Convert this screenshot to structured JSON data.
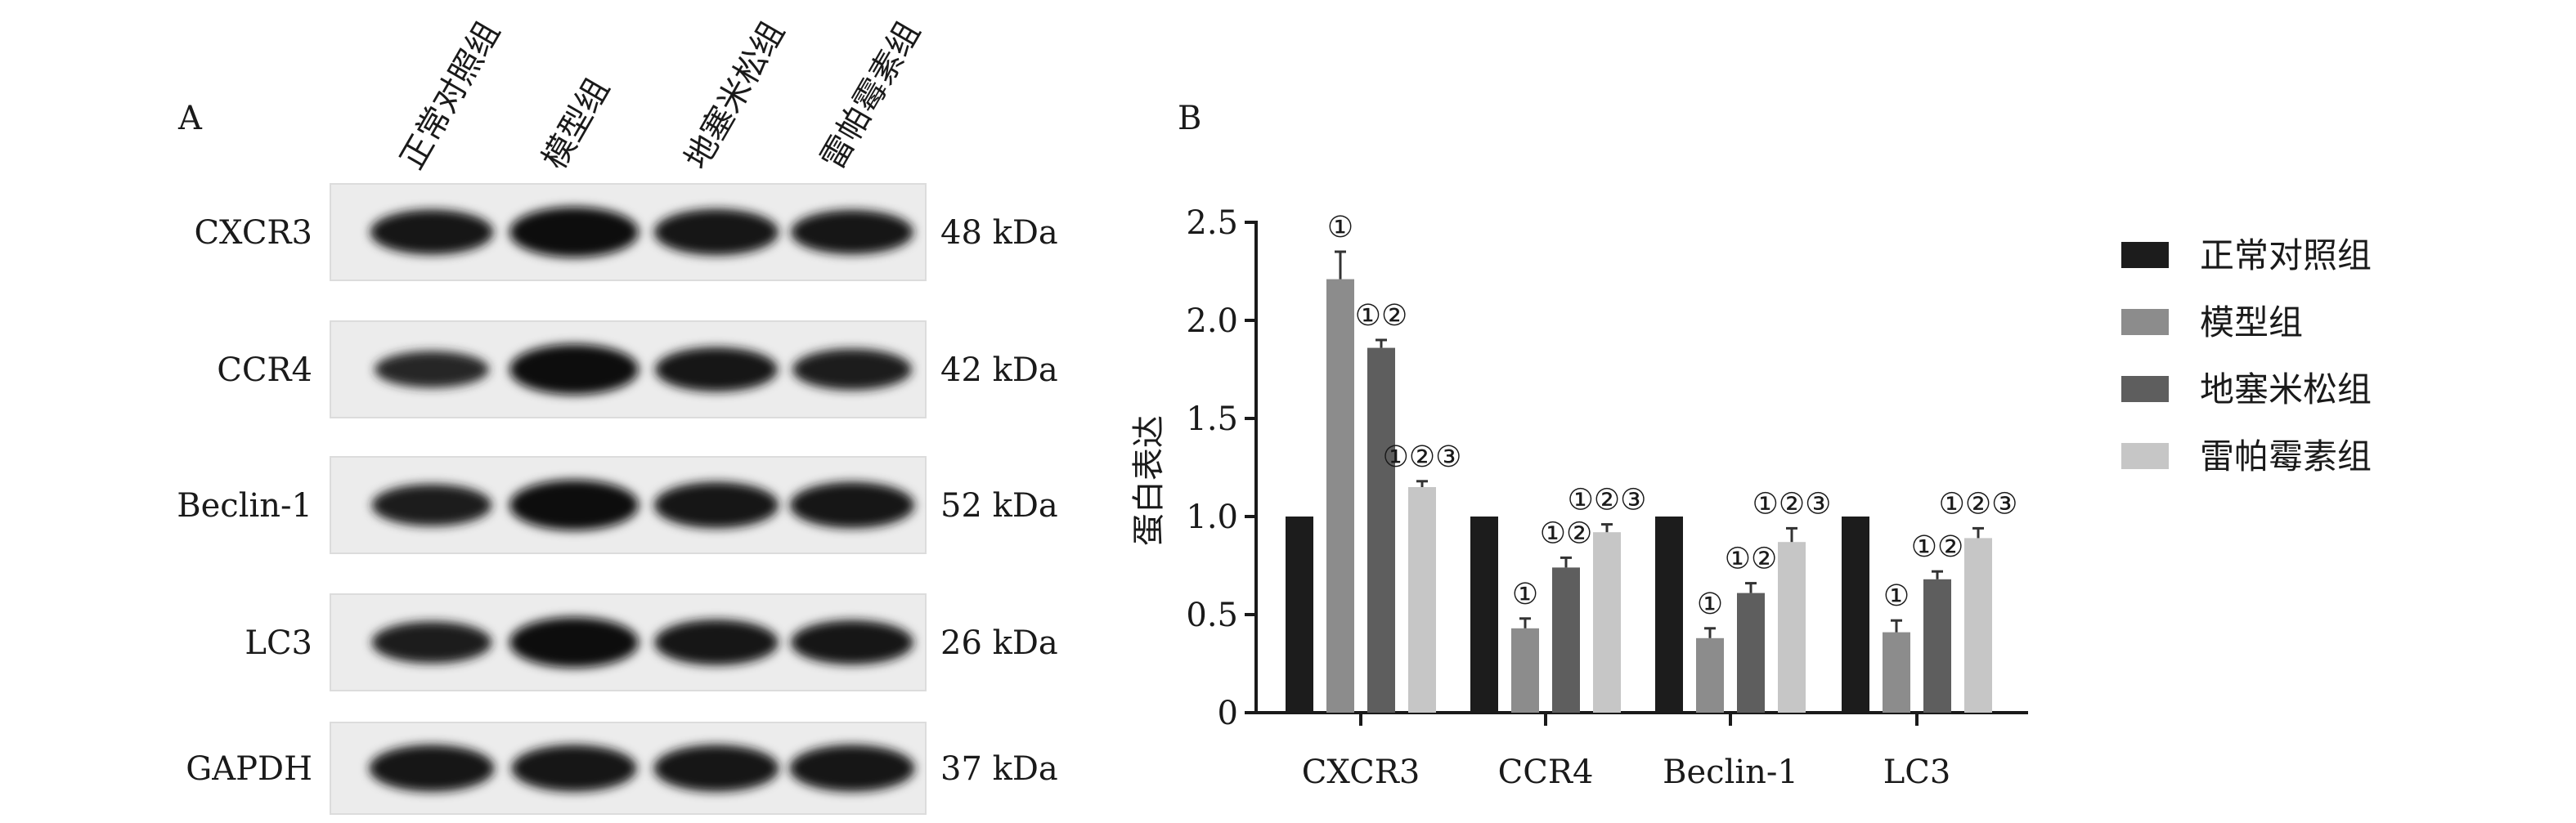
{
  "panel_a": {
    "label": "A",
    "groups": [
      "正常对照组",
      "模型组",
      "地塞米松组",
      "雷帕霉素组"
    ],
    "blots": [
      {
        "protein": "CXCR3",
        "kda": "48 kDa"
      },
      {
        "protein": "CCR4",
        "kda": "42 kDa"
      },
      {
        "protein": "Beclin-1",
        "kda": "52 kDa"
      },
      {
        "protein": "LC3",
        "kda": "26 kDa"
      },
      {
        "protein": "GAPDH",
        "kda": "37 kDa"
      }
    ],
    "band_intensity": [
      [
        0.82,
        1.0,
        0.86,
        0.8
      ],
      [
        0.55,
        1.0,
        0.8,
        0.7
      ],
      [
        0.72,
        1.0,
        0.86,
        0.86
      ],
      [
        0.72,
        1.0,
        0.84,
        0.8
      ],
      [
        0.88,
        0.88,
        0.88,
        0.88
      ]
    ]
  },
  "chart_data": {
    "type": "bar",
    "panel_label": "B",
    "ylabel": "蛋白表达",
    "xlabel": "",
    "ylim": [
      0,
      2.5
    ],
    "yticks": [
      "0",
      "0.5",
      "1.0",
      "1.5",
      "2.0",
      "2.5"
    ],
    "categories": [
      "CXCR3",
      "CCR4",
      "Beclin-1",
      "LC3"
    ],
    "legend_position": "right",
    "series": [
      {
        "name": "正常对照组",
        "color": "#1c1c1c",
        "values": [
          1.0,
          1.0,
          1.0,
          1.0
        ],
        "errors": [
          0,
          0,
          0,
          0
        ],
        "annotations": [
          "",
          "",
          "",
          ""
        ]
      },
      {
        "name": "模型组",
        "color": "#8c8c8c",
        "values": [
          2.21,
          0.43,
          0.38,
          0.41
        ],
        "errors": [
          0.14,
          0.05,
          0.05,
          0.06
        ],
        "annotations": [
          "①",
          "①",
          "①",
          "①"
        ]
      },
      {
        "name": "地塞米松组",
        "color": "#5e5e5e",
        "values": [
          1.86,
          0.74,
          0.61,
          0.68
        ],
        "errors": [
          0.04,
          0.05,
          0.05,
          0.04
        ],
        "annotations": [
          "①②",
          "①②",
          "①②",
          "①②"
        ]
      },
      {
        "name": "雷帕霉素组",
        "color": "#c6c6c6",
        "values": [
          1.15,
          0.92,
          0.87,
          0.89
        ],
        "errors": [
          0.03,
          0.04,
          0.07,
          0.05
        ],
        "annotations": [
          "①②③",
          "①②③",
          "①②③",
          "①②③"
        ]
      }
    ]
  }
}
